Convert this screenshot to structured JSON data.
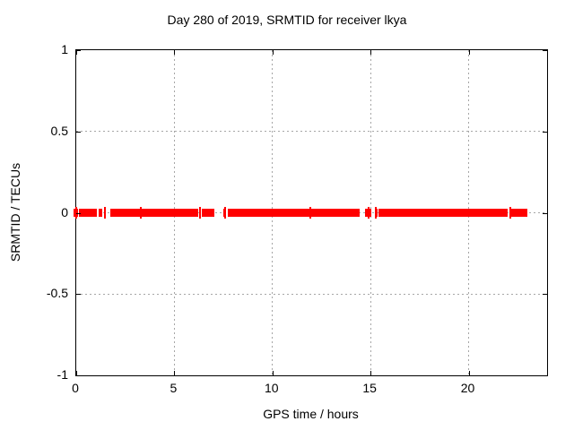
{
  "figure": {
    "background": "#ffffff",
    "axis_color": "#000000",
    "grid_color": "#a6a6a6"
  },
  "chart_data": {
    "type": "scatter",
    "title": "Day 280 of 2019, SRMTID for receiver lkya",
    "xlabel": "GPS time / hours",
    "ylabel": "SRMTID / TECUs",
    "xlim": [
      0,
      24
    ],
    "ylim": [
      -1,
      1
    ],
    "xticks": [
      {
        "value": 0,
        "label": "0"
      },
      {
        "value": 5,
        "label": "5"
      },
      {
        "value": 10,
        "label": "10"
      },
      {
        "value": 15,
        "label": "15"
      },
      {
        "value": 20,
        "label": "20"
      }
    ],
    "yticks": [
      {
        "value": -1,
        "label": "-1"
      },
      {
        "value": -0.5,
        "label": "-0.5"
      },
      {
        "value": 0,
        "label": "0"
      },
      {
        "value": 0.5,
        "label": "0.5"
      },
      {
        "value": 1,
        "label": "1"
      }
    ],
    "grid": true,
    "legend": "none",
    "series": [
      {
        "name": "SRMTID",
        "color": "#ff0000",
        "marker": "plus",
        "y_value": 0,
        "coverage_segments_hours": [
          [
            -0.15,
            0.07
          ],
          [
            0.12,
            1.05
          ],
          [
            1.12,
            1.33
          ],
          [
            1.4,
            1.5
          ],
          [
            1.72,
            3.25
          ],
          [
            3.29,
            3.33
          ],
          [
            3.38,
            6.2
          ],
          [
            6.27,
            6.35
          ],
          [
            6.42,
            7.05
          ],
          [
            7.5,
            7.65
          ],
          [
            7.74,
            14.45
          ],
          [
            14.74,
            15.02
          ],
          [
            15.22,
            15.36
          ],
          [
            15.42,
            21.98
          ],
          [
            22.1,
            22.98
          ]
        ],
        "spike_points_hours": [
          0.02,
          1.45,
          3.31,
          6.31,
          7.57,
          11.95,
          14.88,
          15.29,
          22.13
        ]
      }
    ]
  }
}
